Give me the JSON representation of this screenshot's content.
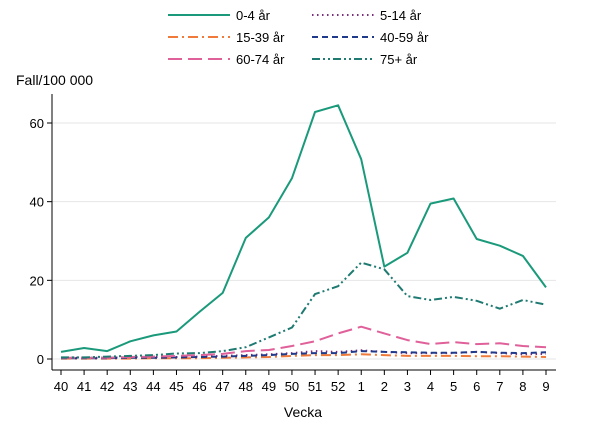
{
  "chart_data": {
    "type": "line",
    "title": "",
    "ylabel": "Fall/100 000",
    "xlabel": "Vecka",
    "ylim": [
      0,
      66
    ],
    "yticks": [
      0,
      20,
      40,
      60
    ],
    "grid": true,
    "legend_position": "top",
    "categories": [
      "40",
      "41",
      "42",
      "43",
      "44",
      "45",
      "46",
      "47",
      "48",
      "49",
      "50",
      "51",
      "52",
      "1",
      "2",
      "3",
      "4",
      "5",
      "6",
      "7",
      "8",
      "9"
    ],
    "series": [
      {
        "name": "0-4 år",
        "color": "#1a9a7a",
        "dash": "solid",
        "values": [
          1.8,
          2.8,
          2.0,
          4.5,
          6.0,
          7.0,
          12.0,
          16.8,
          30.8,
          36.0,
          46.0,
          62.8,
          64.5,
          50.8,
          23.5,
          27.0,
          39.5,
          40.8,
          30.5,
          28.8,
          26.2,
          18.2
        ]
      },
      {
        "name": "5-14 år",
        "color": "#7b2d7e",
        "dash": "dot",
        "values": [
          0.3,
          0.3,
          0.3,
          0.5,
          0.5,
          0.5,
          0.6,
          0.8,
          1.0,
          1.2,
          1.5,
          2.0,
          1.8,
          2.2,
          1.8,
          1.5,
          1.5,
          1.5,
          1.8,
          1.5,
          1.2,
          1.3
        ]
      },
      {
        "name": "15-39 år",
        "color": "#f07a3a",
        "dash": "dashdot",
        "values": [
          0.1,
          0.1,
          0.1,
          0.1,
          0.2,
          0.2,
          0.2,
          0.3,
          0.4,
          0.5,
          0.8,
          1.0,
          1.0,
          1.2,
          1.0,
          0.8,
          0.8,
          0.8,
          0.7,
          0.7,
          0.6,
          0.5
        ]
      },
      {
        "name": "40-59 år",
        "color": "#1f3a8a",
        "dash": "dash",
        "values": [
          0.2,
          0.2,
          0.2,
          0.3,
          0.3,
          0.4,
          0.5,
          0.6,
          0.8,
          1.0,
          1.3,
          1.5,
          1.5,
          2.0,
          1.8,
          1.7,
          1.6,
          1.6,
          1.8,
          1.6,
          1.5,
          1.7
        ]
      },
      {
        "name": "60-74 år",
        "color": "#e0609a",
        "dash": "longdash",
        "values": [
          0.3,
          0.3,
          0.3,
          0.5,
          0.6,
          0.8,
          1.0,
          1.3,
          2.0,
          2.3,
          3.3,
          4.5,
          6.5,
          8.2,
          6.5,
          4.8,
          3.8,
          4.3,
          3.8,
          4.0,
          3.3,
          3.0
        ]
      },
      {
        "name": "75+ år",
        "color": "#1f7a72",
        "dash": "dashdotdot",
        "values": [
          0.4,
          0.4,
          0.6,
          0.8,
          1.0,
          1.4,
          1.5,
          2.0,
          3.0,
          5.5,
          8.0,
          16.5,
          18.5,
          24.5,
          22.8,
          16.0,
          15.0,
          15.8,
          14.8,
          12.8,
          15.0,
          13.8
        ]
      }
    ]
  }
}
